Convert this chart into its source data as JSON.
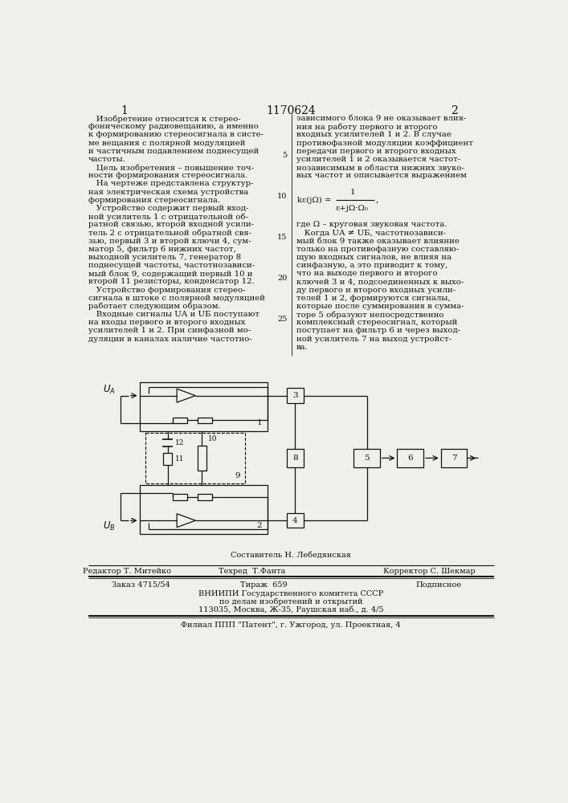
{
  "page_number_center": "1170624",
  "page_left": "1",
  "page_right": "2",
  "col1_lines": [
    "   Изобретение относится к стерео-",
    "фоническому радиовещанию, а именно",
    "к формированию стереосигнала в систе-",
    "ме вещания с полярной модуляцией",
    "и частичным подавлением поднесущей",
    "частоты.",
    "   Цель изобретения – повышение точ-",
    "ности формирования стереосигнала.",
    "   На чертеже представлена структур-",
    "ная электрическая схема устройства",
    "формирования стереосигнала.",
    "   Устройство содержит первый вход-",
    "ной усилитель 1 с отрицательной об-",
    "ратной связью, второй входной усили-",
    "тель 2 с отрицательной обратной свя-",
    "зью, первый 3 и второй ключи 4, сум-",
    "матор 5, фильтр 6 нижних частот,",
    "выходной усилитель 7, генератор 8",
    "поднесущей частоты, частотнозависи-",
    "мый блок 9, содержащий первый 10 и",
    "второй 11 резисторы, конденсатор 12.",
    "   Устройство формирования стерео-",
    "сигнала в штоке с полярной модуляцией",
    "работает следующим образом.",
    "   Входные сигналы UА и UБ поступают",
    "на входы первого и второго входных",
    "усилителей 1 и 2. При синфазной мо-",
    "дуляции в каналах наличие частотно-"
  ],
  "col2_lines": [
    "зависимого блока 9 не оказывает влия-",
    "ния на работу первого и второго",
    "входных усилителей 1 и 2. В случае",
    "противофазной модуляции коэффициент",
    "передачи первого и второго входных",
    "усилителей 1 и 2 оказывается частот-",
    "нозависимым в области нижних звуко-",
    "вых частот и описывается выражением",
    "",
    "              1",
    "kε(jΩ) =  ────────────── ,",
    "         ε+jΩ·Ω₀",
    "",
    "где Ω – круговая звуковая частота.",
    "   Когда UА ≠ UБ, частотнозависи-",
    "мый блок 9 также оказывает влияние",
    "только на противофазную составляю-",
    "щую входных сигналов, не влияя на",
    "синфазную, а это приводит к тому,",
    "что на выходе первого и второго",
    "ключей 3 и 4, подсоединенных к выхо-",
    "ду первого и второго входных усили-",
    "телей 1 и 2, формируются сигналы,",
    "которые после суммирования в сумма-",
    "торе 5 образуют непосредственно",
    "комплексный стереосигнал, который",
    "поступает на фильтр 6 и через выход-",
    "ной усилитель 7 на выход устройст-",
    "ва."
  ],
  "footer_left": "Редактор Т. Митейко",
  "footer_center1": "Составитель Н. Лебедянская",
  "footer_center2": "Техред  Т.Фанта",
  "footer_right": "Корректор С. Шекмар",
  "footer_order": "Заказ 4715/54",
  "footer_tirazh": "Тираж  659",
  "footer_podpisnoe": "Подписное",
  "footer_vniipи": "ВНИИПИ Государственного комитета СССР",
  "footer_po_delam": "по делам изобретений и открытий",
  "footer_address": "113035, Москва, Ж-35, Раушская наб., д. 4/5",
  "footer_filial": "Филиал ППП \"Патент\", г. Ужгород, ул. Проектная, 4",
  "bg_color": "#f0f0eb",
  "text_color": "#111111",
  "line_numbers": [
    "5",
    "10",
    "15",
    "20",
    "25"
  ]
}
